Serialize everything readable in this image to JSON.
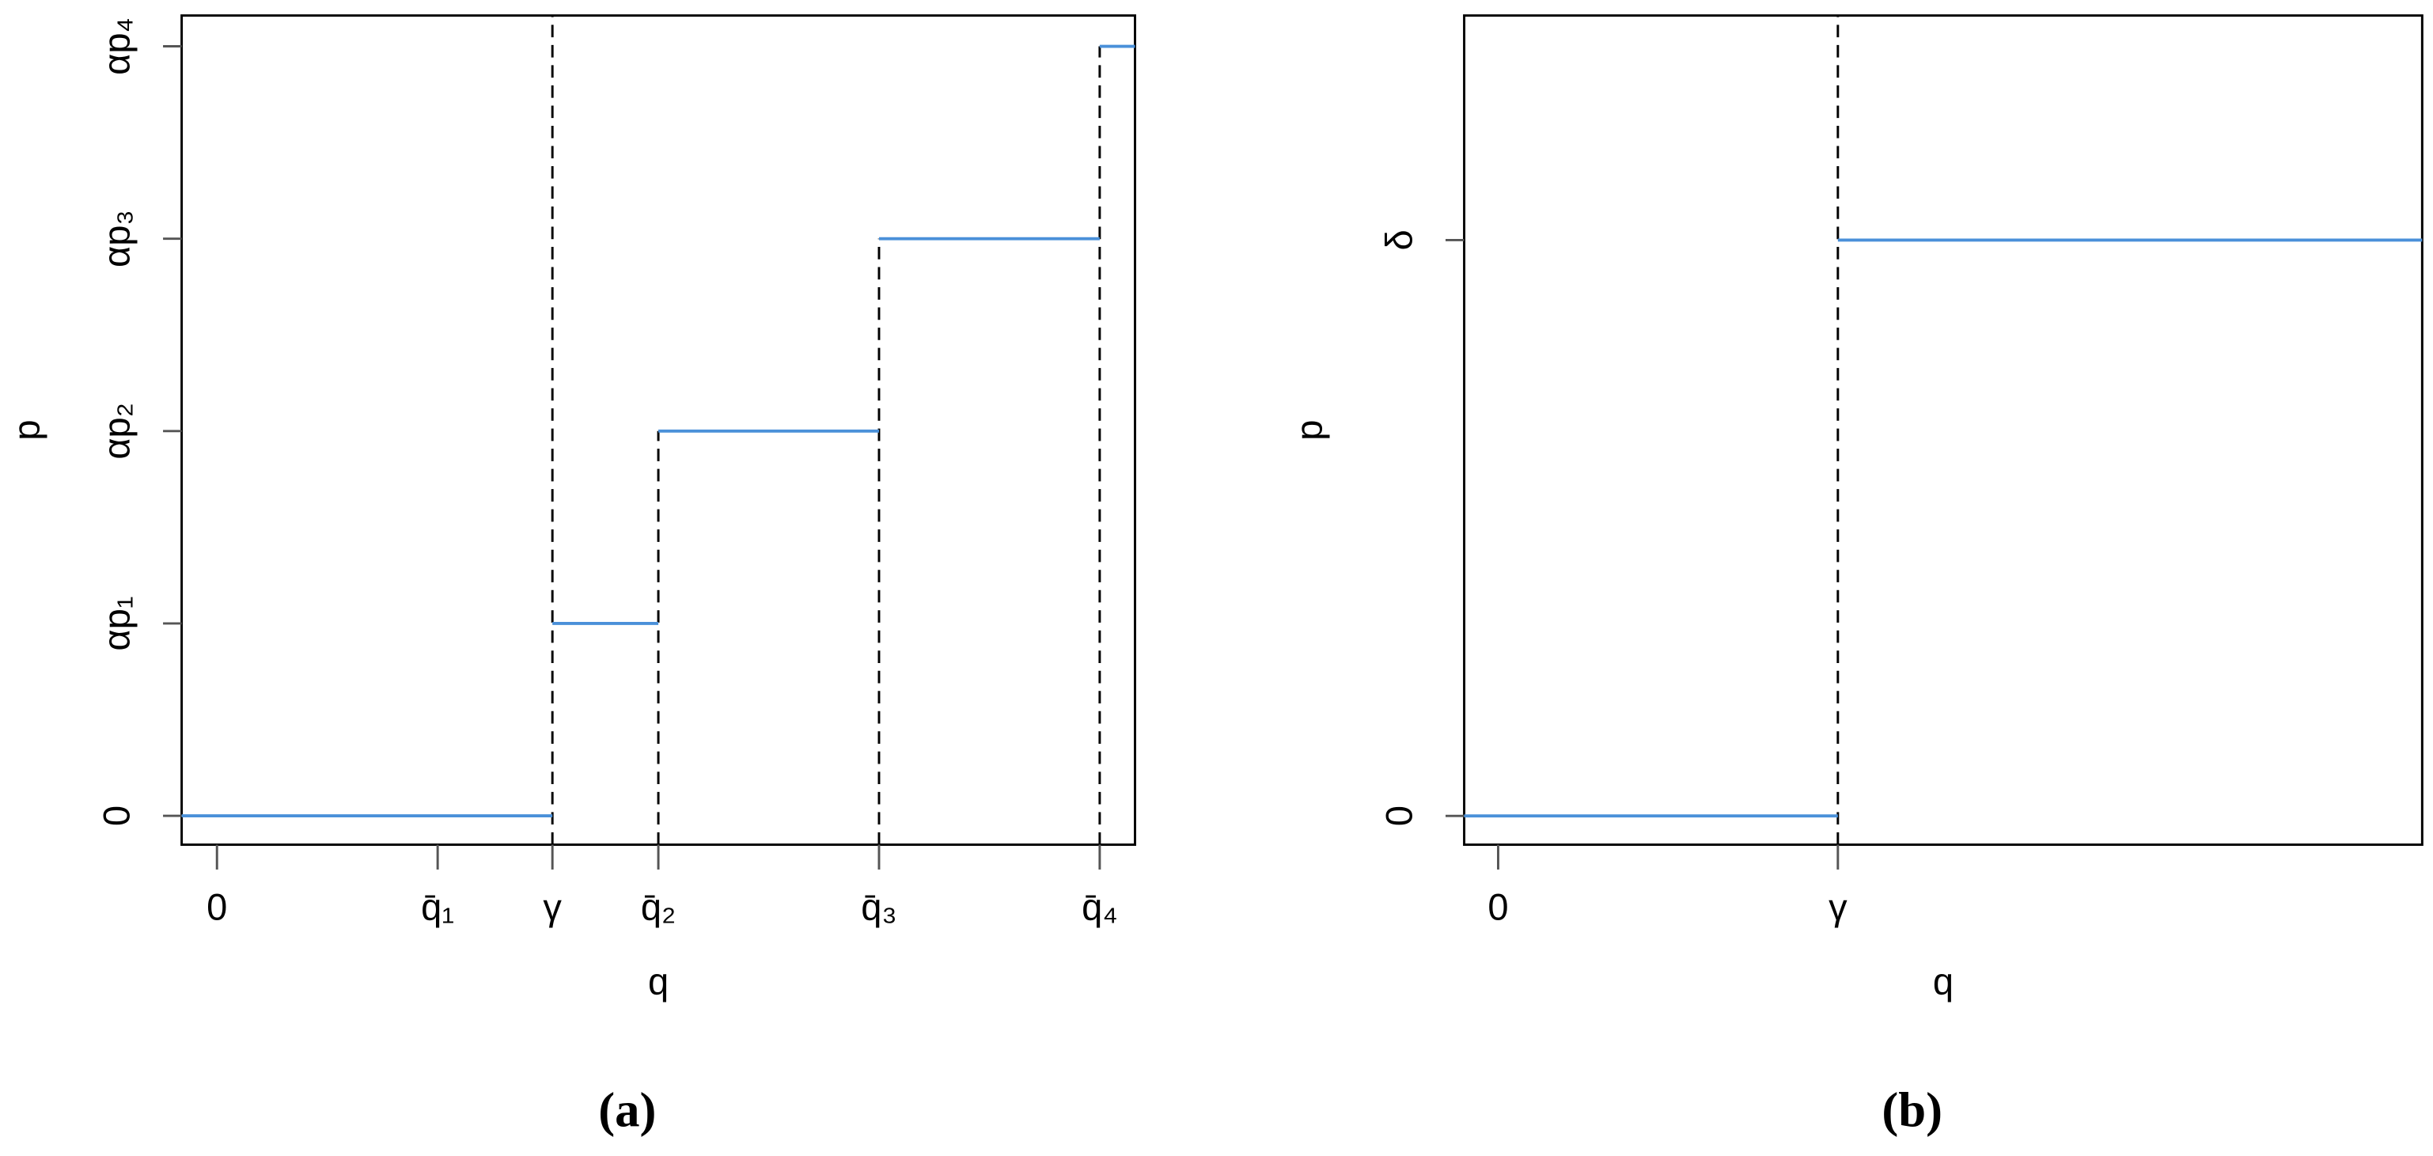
{
  "chart_data": [
    {
      "type": "step",
      "caption": "(a)",
      "x_label": "q",
      "y_label": "p",
      "color": "#4a90d9",
      "x": [
        -0.4,
        3.8,
        5.0,
        7.5,
        10
      ],
      "values": [
        0,
        1,
        2,
        3,
        4
      ],
      "xlim": [
        -0.4,
        10.4
      ],
      "ylim": [
        -0.15,
        4.16
      ],
      "xticks": [
        0,
        {
          "value": 2.5,
          "label": "q̄₁"
        },
        {
          "value": 3.8,
          "label": "γ"
        },
        {
          "value": 5.0,
          "label": "q̄₂"
        },
        {
          "value": 7.5,
          "label": "q̄₃"
        },
        {
          "value": 10,
          "label": "q̄₄"
        }
      ],
      "yticks": [
        0,
        {
          "value": 1,
          "label": "αp₁"
        },
        {
          "value": 2,
          "label": "αp₂"
        },
        {
          "value": 3,
          "label": "αp₃"
        },
        {
          "value": 4,
          "label": "αp₄"
        }
      ],
      "vlines": [
        {
          "x": 3.8,
          "ymax": 4.16
        },
        {
          "x": 5.0,
          "ymax": 2
        },
        {
          "x": 7.5,
          "ymax": 3
        },
        {
          "x": 10,
          "ymax": 4
        }
      ]
    },
    {
      "type": "step",
      "caption": "(b)",
      "x_label": "q",
      "y_label": "p",
      "color": "#4a90d9",
      "x": [
        -0.1,
        1
      ],
      "values": [
        0,
        1
      ],
      "xlim": [
        -0.1,
        2.72
      ],
      "ylim": [
        -0.05,
        1.39
      ],
      "xticks": [
        0,
        {
          "value": 1,
          "label": "γ"
        }
      ],
      "yticks": [
        0,
        {
          "value": 1,
          "label": "δ"
        }
      ],
      "vlines": [
        {
          "x": 1,
          "ymax": 1.39
        }
      ]
    }
  ]
}
